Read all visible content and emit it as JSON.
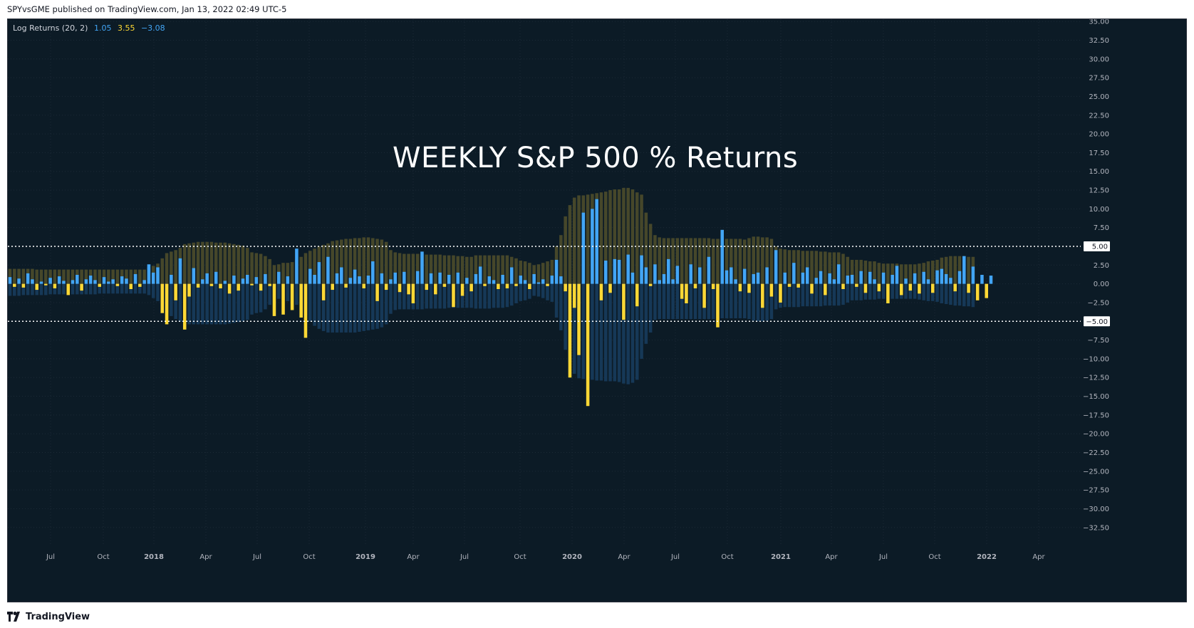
{
  "header": {
    "publish_text": "SPYvsGME published on TradingView.com, Jan 13, 2022 02:49 UTC-5"
  },
  "legend": {
    "indicator": "Log Returns (20, 2)",
    "value_1": "1.05",
    "value_2": "3.55",
    "value_3": "−3.08",
    "value_1_color": "#42a5f5",
    "value_2_color": "#fdd835",
    "value_3_color": "#42a5f5"
  },
  "footer": {
    "brand": "TradingView",
    "brand_icon": "tradingview-logo-icon"
  },
  "colors": {
    "background": "#0c1b26",
    "positive_return": "#42a5f5",
    "negative_return": "#fdd835",
    "upper_band": "#4a4a2a",
    "lower_band": "#173a5a",
    "guide_line": "#ffffff"
  },
  "chart_data": {
    "type": "bar",
    "title": "WEEKLY S&P 500 % Returns",
    "x_ticks": [
      {
        "label": "Jul",
        "bold": false
      },
      {
        "label": "Oct",
        "bold": false
      },
      {
        "label": "2018",
        "bold": true
      },
      {
        "label": "Apr",
        "bold": false
      },
      {
        "label": "Jul",
        "bold": false
      },
      {
        "label": "Oct",
        "bold": false
      },
      {
        "label": "2019",
        "bold": true
      },
      {
        "label": "Apr",
        "bold": false
      },
      {
        "label": "Jul",
        "bold": false
      },
      {
        "label": "Oct",
        "bold": false
      },
      {
        "label": "2020",
        "bold": true
      },
      {
        "label": "Apr",
        "bold": false
      },
      {
        "label": "Jul",
        "bold": false
      },
      {
        "label": "Oct",
        "bold": false
      },
      {
        "label": "2021",
        "bold": true
      },
      {
        "label": "Apr",
        "bold": false
      },
      {
        "label": "Jul",
        "bold": false
      },
      {
        "label": "Oct",
        "bold": false
      },
      {
        "label": "2022",
        "bold": true
      },
      {
        "label": "Apr",
        "bold": false
      }
    ],
    "y_ticks": [
      "35.00",
      "32.50",
      "30.00",
      "27.50",
      "25.00",
      "22.50",
      "20.00",
      "17.50",
      "15.00",
      "12.50",
      "10.00",
      "7.50",
      "5.00",
      "2.50",
      "0.00",
      "-2.50",
      "-5.00",
      "-7.50",
      "-10.00",
      "-12.50",
      "-15.00",
      "-17.50",
      "-20.00",
      "-22.50",
      "-25.00",
      "-27.50",
      "-30.00",
      "-32.50"
    ],
    "ylim": [
      -34.8,
      35.3
    ],
    "horizontal_lines": [
      {
        "value": 5,
        "label": "5.00"
      },
      {
        "value": -5,
        "label": "−5.00"
      }
    ],
    "series": [
      {
        "name": "Log Returns",
        "values": [
          0.9,
          -0.4,
          0.7,
          -0.5,
          1.4,
          0.6,
          -0.8,
          0.3,
          -0.2,
          0.8,
          -0.6,
          1.0,
          0.4,
          -1.5,
          0.5,
          1.2,
          -0.9,
          0.6,
          1.1,
          0.5,
          -0.4,
          0.9,
          0.3,
          0.6,
          -0.3,
          1.0,
          0.7,
          -0.7,
          1.3,
          -0.4,
          0.5,
          2.6,
          1.5,
          2.2,
          -3.9,
          -5.4,
          1.2,
          -2.2,
          3.4,
          -6.1,
          -1.7,
          2.1,
          -0.5,
          0.6,
          1.4,
          -0.3,
          1.6,
          -0.6,
          0.4,
          -1.3,
          1.1,
          -0.9,
          0.7,
          1.2,
          -0.2,
          0.9,
          -0.9,
          1.3,
          -0.3,
          -4.3,
          1.6,
          -4.1,
          1.0,
          -3.5,
          4.7,
          -4.5,
          -7.2,
          2.0,
          1.2,
          2.9,
          -2.2,
          3.6,
          -0.8,
          1.4,
          2.2,
          -0.5,
          0.8,
          1.9,
          1.0,
          -0.6,
          1.1,
          3.0,
          -2.3,
          1.4,
          -0.8,
          0.6,
          1.5,
          -1.1,
          1.6,
          -1.4,
          -2.6,
          1.7,
          4.3,
          -0.8,
          1.4,
          -1.4,
          1.5,
          -0.4,
          1.2,
          -3.1,
          1.5,
          -1.6,
          0.8,
          -1.0,
          1.3,
          2.3,
          -0.3,
          1.0,
          0.5,
          -0.7,
          1.2,
          -0.6,
          2.2,
          -0.3,
          1.1,
          0.5,
          -0.7,
          1.3,
          0.2,
          0.6,
          -0.3,
          1.1,
          3.2,
          1.0,
          -1.0,
          -12.5,
          -3.2,
          -9.5,
          9.5,
          -16.3,
          10.0,
          11.3,
          -2.2,
          3.1,
          -1.2,
          3.3,
          3.2,
          -4.8,
          3.9,
          1.5,
          -3.0,
          3.8,
          2.2,
          -0.3,
          2.6,
          0.5,
          1.3,
          3.3,
          0.6,
          2.4,
          -2.0,
          -2.6,
          2.6,
          -0.6,
          2.2,
          -3.2,
          3.6,
          -0.7,
          -5.8,
          7.2,
          1.8,
          2.2,
          0.6,
          -1.0,
          2.0,
          -1.2,
          1.3,
          1.5,
          -3.2,
          2.2,
          -1.7,
          4.5,
          -2.5,
          1.5,
          -0.4,
          2.8,
          -0.5,
          1.5,
          2.2,
          -1.3,
          0.8,
          1.7,
          -1.5,
          1.4,
          0.6,
          2.6,
          -0.7,
          1.1,
          1.2,
          -0.4,
          1.7,
          -1.2,
          1.6,
          0.6,
          -1.0,
          1.5,
          -2.6,
          1.2,
          2.4,
          -1.5,
          0.7,
          -0.9,
          1.4,
          -1.3,
          1.6,
          0.6,
          -1.2,
          1.8,
          2.0,
          1.3,
          0.8,
          -1.0,
          1.7,
          3.7,
          -1.2,
          2.3,
          -2.2,
          1.2,
          -1.9,
          1.1
        ]
      },
      {
        "name": "Upper Band",
        "values": [
          2.0,
          2.0,
          2.0,
          2.0,
          2.0,
          2.0,
          1.9,
          1.9,
          1.9,
          1.9,
          1.9,
          1.9,
          1.9,
          1.9,
          1.9,
          1.9,
          1.9,
          1.9,
          1.9,
          1.9,
          1.9,
          1.9,
          1.9,
          1.9,
          1.9,
          1.9,
          1.9,
          1.9,
          1.9,
          1.9,
          1.9,
          2.2,
          2.4,
          2.7,
          3.4,
          4.1,
          4.3,
          4.5,
          4.8,
          5.3,
          5.4,
          5.5,
          5.6,
          5.6,
          5.6,
          5.6,
          5.5,
          5.5,
          5.5,
          5.4,
          5.3,
          5.2,
          5.1,
          4.8,
          4.2,
          4.1,
          4.0,
          3.7,
          3.3,
          2.5,
          2.6,
          2.8,
          2.8,
          2.9,
          3.2,
          3.6,
          4.1,
          4.4,
          4.7,
          5.0,
          5.2,
          5.4,
          5.7,
          5.8,
          5.9,
          6.0,
          6.0,
          6.1,
          6.1,
          6.2,
          6.2,
          6.1,
          6.0,
          5.9,
          5.6,
          4.5,
          4.2,
          4.1,
          4.0,
          4.0,
          4.0,
          4.0,
          4.0,
          3.9,
          3.9,
          3.9,
          3.9,
          3.8,
          3.8,
          3.8,
          3.7,
          3.7,
          3.6,
          3.6,
          3.8,
          3.8,
          3.8,
          3.8,
          3.8,
          3.8,
          3.8,
          3.8,
          3.6,
          3.4,
          3.1,
          3.0,
          2.8,
          2.5,
          2.6,
          2.8,
          3.0,
          3.2,
          5.0,
          6.5,
          9.0,
          10.5,
          11.5,
          11.8,
          11.8,
          11.9,
          12.0,
          12.1,
          12.2,
          12.3,
          12.5,
          12.6,
          12.6,
          12.8,
          12.8,
          12.6,
          12.2,
          11.9,
          9.5,
          8.0,
          6.5,
          6.2,
          6.1,
          6.1,
          6.1,
          6.1,
          6.1,
          6.1,
          6.1,
          6.1,
          6.1,
          6.1,
          6.1,
          6.0,
          6.0,
          5.9,
          6.0,
          6.0,
          6.0,
          6.0,
          5.9,
          6.1,
          6.3,
          6.3,
          6.2,
          6.2,
          6.0,
          5.0,
          4.7,
          4.6,
          4.5,
          4.5,
          4.5,
          4.4,
          4.4,
          4.4,
          4.4,
          4.3,
          4.3,
          4.2,
          4.2,
          4.2,
          4.0,
          3.6,
          3.2,
          3.2,
          3.2,
          3.1,
          3.0,
          3.0,
          2.8,
          2.7,
          2.7,
          2.7,
          2.7,
          2.6,
          2.6,
          2.6,
          2.6,
          2.7,
          2.8,
          3.0,
          3.1,
          3.2,
          3.5,
          3.6,
          3.7,
          3.7,
          3.7,
          3.7,
          3.6,
          3.6
        ]
      },
      {
        "name": "Lower Band",
        "values": [
          -1.6,
          -1.6,
          -1.6,
          -1.5,
          -1.5,
          -1.5,
          -1.5,
          -1.5,
          -1.5,
          -1.4,
          -1.4,
          -1.4,
          -1.4,
          -1.4,
          -1.4,
          -1.4,
          -1.4,
          -1.4,
          -1.4,
          -1.4,
          -1.3,
          -1.3,
          -1.3,
          -1.3,
          -1.3,
          -1.3,
          -1.3,
          -1.3,
          -1.3,
          -1.3,
          -1.3,
          -1.5,
          -1.9,
          -2.3,
          -3.1,
          -3.9,
          -4.3,
          -4.7,
          -5.0,
          -5.3,
          -5.4,
          -5.4,
          -5.4,
          -5.4,
          -5.4,
          -5.4,
          -5.4,
          -5.4,
          -5.4,
          -5.3,
          -5.2,
          -5.1,
          -5.0,
          -4.8,
          -4.1,
          -3.9,
          -3.8,
          -3.4,
          -2.8,
          -1.8,
          -2.0,
          -2.2,
          -2.3,
          -2.4,
          -2.8,
          -3.4,
          -4.2,
          -5.0,
          -5.6,
          -6.0,
          -6.3,
          -6.5,
          -6.5,
          -6.5,
          -6.5,
          -6.5,
          -6.5,
          -6.5,
          -6.4,
          -6.3,
          -6.2,
          -6.1,
          -6.0,
          -5.8,
          -5.4,
          -4.0,
          -3.5,
          -3.4,
          -3.4,
          -3.4,
          -3.4,
          -3.4,
          -3.4,
          -3.3,
          -3.3,
          -3.3,
          -3.3,
          -3.3,
          -3.2,
          -3.2,
          -3.2,
          -3.2,
          -3.2,
          -3.2,
          -3.3,
          -3.3,
          -3.3,
          -3.3,
          -3.2,
          -3.2,
          -3.2,
          -3.1,
          -2.9,
          -2.6,
          -2.3,
          -2.2,
          -2.0,
          -1.6,
          -1.7,
          -1.9,
          -2.2,
          -2.4,
          -4.5,
          -6.2,
          -8.8,
          -10.5,
          -12.0,
          -12.6,
          -12.7,
          -12.8,
          -12.8,
          -12.9,
          -12.9,
          -13.0,
          -13.0,
          -13.0,
          -13.1,
          -13.3,
          -13.4,
          -13.2,
          -12.8,
          -10.0,
          -8.0,
          -6.5,
          -4.8,
          -4.7,
          -4.7,
          -4.7,
          -4.7,
          -4.7,
          -4.7,
          -4.7,
          -4.7,
          -4.7,
          -4.7,
          -4.7,
          -4.7,
          -4.7,
          -4.6,
          -4.6,
          -4.6,
          -4.6,
          -4.6,
          -4.6,
          -4.6,
          -4.7,
          -4.9,
          -5.0,
          -5.0,
          -4.9,
          -4.7,
          -3.4,
          -3.2,
          -3.1,
          -3.1,
          -3.1,
          -3.1,
          -3.0,
          -3.0,
          -3.0,
          -3.0,
          -3.0,
          -2.9,
          -2.9,
          -2.9,
          -2.9,
          -2.8,
          -2.5,
          -2.2,
          -2.2,
          -2.2,
          -2.1,
          -2.1,
          -2.1,
          -2.0,
          -2.0,
          -2.0,
          -2.0,
          -2.0,
          -2.0,
          -2.0,
          -2.0,
          -2.0,
          -2.1,
          -2.2,
          -2.3,
          -2.3,
          -2.4,
          -2.6,
          -2.7,
          -2.8,
          -2.9,
          -2.9,
          -3.0,
          -3.0,
          -3.1
        ]
      }
    ],
    "grid": true,
    "legend": "top-left"
  }
}
